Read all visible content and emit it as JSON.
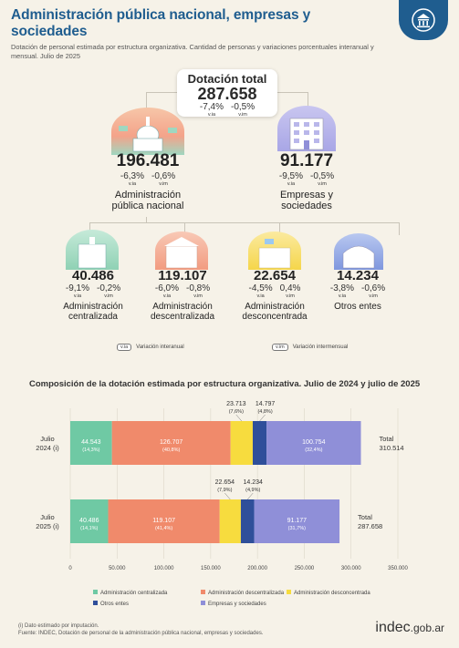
{
  "header": {
    "title": "Administración pública nacional, empresas y sociedades",
    "subtitle": "Dotación de personal estimada por estructura organizativa. Cantidad de personas y variaciones porcentuales interanual y mensual. Julio de 2025"
  },
  "tree": {
    "total": {
      "title": "Dotación total",
      "value": "287.658",
      "via": "-7,4%",
      "vim": "-0,5%",
      "via_tag": "v.ia",
      "vim_tag": "v.im"
    },
    "apn": {
      "value": "196.481",
      "via": "-6,3%",
      "vim": "-0,6%",
      "via_tag": "v.ia",
      "vim_tag": "v.im",
      "label1": "Administración",
      "label2": "pública nacional"
    },
    "emp": {
      "value": "91.177",
      "via": "-9,5%",
      "vim": "-0,5%",
      "via_tag": "v.ia",
      "vim_tag": "v.im",
      "label1": "Empresas y",
      "label2": "sociedades"
    },
    "cent": {
      "value": "40.486",
      "via": "-9,1%",
      "vim": "-0,2%",
      "via_tag": "v.ia",
      "vim_tag": "v.im",
      "label1": "Administración",
      "label2": "centralizada"
    },
    "desc": {
      "value": "119.107",
      "via": "-6,0%",
      "vim": "-0,8%",
      "via_tag": "v.ia",
      "vim_tag": "v.im",
      "label1": "Administración",
      "label2": "descentralizada"
    },
    "desconc": {
      "value": "22.654",
      "via": "-4,5%",
      "vim": "0,4%",
      "via_tag": "v.ia",
      "vim_tag": "v.im",
      "label1": "Administración",
      "label2": "desconcentrada"
    },
    "otros": {
      "value": "14.234",
      "via": "-3,8%",
      "vim": "-0,6%",
      "via_tag": "v.ia",
      "vim_tag": "v.im",
      "label1": "Otros entes",
      "label2": ""
    }
  },
  "legend_keys": {
    "via_tag": "v.ia",
    "via_text": "Variación interanual",
    "vim_tag": "v.im",
    "vim_text": "Variación intermensual"
  },
  "chart_data": {
    "type": "bar",
    "orientation": "horizontal",
    "stacked": true,
    "title": "Composición de la dotación estimada por estructura organizativa. Julio de 2024 y julio de 2025",
    "categories": [
      "Julio 2024 (i)",
      "Julio 2025 (i)"
    ],
    "category_lines": [
      [
        "Julio",
        "2024 (i)"
      ],
      [
        "Julio",
        "2025 (i)"
      ]
    ],
    "series": [
      {
        "name": "Administración centralizada",
        "color": "#6fc9a4",
        "values": [
          44543,
          40486
        ],
        "labels": [
          "44.543",
          "40.486"
        ],
        "pcts": [
          "(14,3%)",
          "(14,1%)"
        ]
      },
      {
        "name": "Administración descentralizada",
        "color": "#f08a6b",
        "values": [
          126707,
          119107
        ],
        "labels": [
          "126.707",
          "119.107"
        ],
        "pcts": [
          "(40,8%)",
          "(41,4%)"
        ]
      },
      {
        "name": "Administración desconcentrada",
        "color": "#f7dc3e",
        "values": [
          23713,
          22654
        ],
        "labels": [
          "23.713",
          "22.654"
        ],
        "pcts": [
          "(7,6%)",
          "(7,9%)"
        ]
      },
      {
        "name": "Otros entes",
        "color": "#2f4f9a",
        "values": [
          14797,
          14234
        ],
        "labels": [
          "14.797",
          "14.234"
        ],
        "pcts": [
          "(4,8%)",
          "(4,9%)"
        ]
      },
      {
        "name": "Empresas y sociedades",
        "color": "#8f8fd8",
        "values": [
          100754,
          91177
        ],
        "labels": [
          "100.754",
          "91.177"
        ],
        "pcts": [
          "(32,4%)",
          "(31,7%)"
        ]
      }
    ],
    "totals": [
      {
        "label": "Total",
        "value": "310.514"
      },
      {
        "label": "Total",
        "value": "287.658"
      }
    ],
    "xlim": [
      0,
      350000
    ],
    "xticks": [
      "0",
      "50.000",
      "100.000",
      "150.000",
      "200.000",
      "250.000",
      "300.000",
      "350.000"
    ],
    "xtick_values": [
      0,
      50000,
      100000,
      150000,
      200000,
      250000,
      300000,
      350000
    ],
    "grid": true,
    "legend_position": "bottom"
  },
  "footer": {
    "note": "(i) Dato estimado por imputación.",
    "source": "Fuente: INDEC, Dotación de personal de la administración pública nacional, empresas y sociedades."
  },
  "brand": {
    "name": "indec",
    "domain": ".gob.ar"
  }
}
